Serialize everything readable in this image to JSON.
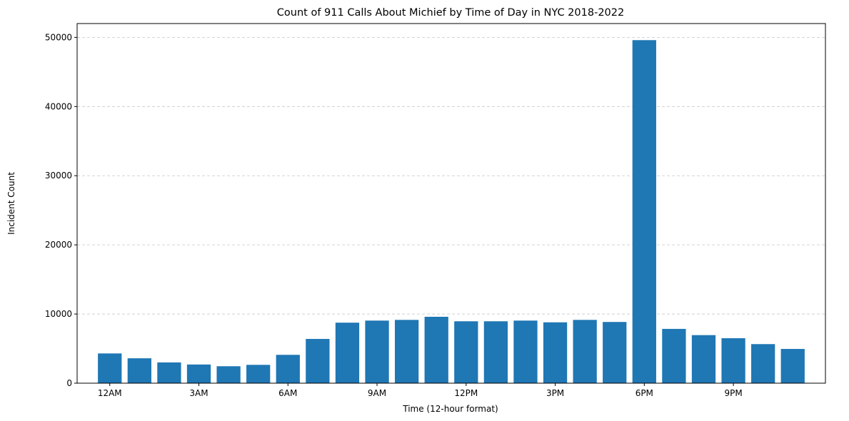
{
  "chart_data": {
    "type": "bar",
    "title": "Count of 911 Calls About Michief by Time of Day in NYC 2018-2022",
    "xlabel": "Time (12-hour format)",
    "ylabel": "Incident Count",
    "hours": [
      0,
      1,
      2,
      3,
      4,
      5,
      6,
      7,
      8,
      9,
      10,
      11,
      12,
      13,
      14,
      15,
      16,
      17,
      18,
      19,
      20,
      21,
      22,
      23
    ],
    "values": [
      4300,
      3600,
      3000,
      2700,
      2450,
      2650,
      4100,
      6400,
      8750,
      9050,
      9150,
      9600,
      8950,
      8950,
      9050,
      8800,
      9150,
      8850,
      49600,
      7850,
      6950,
      6500,
      5650,
      4950
    ],
    "xlim": [
      -1.1,
      24.1
    ],
    "ylim": [
      0,
      52000
    ],
    "xticks": [
      {
        "hour": 0,
        "label": "12AM"
      },
      {
        "hour": 3,
        "label": "3AM"
      },
      {
        "hour": 6,
        "label": "6AM"
      },
      {
        "hour": 9,
        "label": "9AM"
      },
      {
        "hour": 12,
        "label": "12PM"
      },
      {
        "hour": 15,
        "label": "3PM"
      },
      {
        "hour": 18,
        "label": "6PM"
      },
      {
        "hour": 21,
        "label": "9PM"
      }
    ],
    "yticks": [
      0,
      10000,
      20000,
      30000,
      40000,
      50000
    ],
    "grid": {
      "axis": "y",
      "style": "dashed"
    },
    "bar_color": "#1f77b4",
    "grid_color": "#c8c8c8"
  }
}
